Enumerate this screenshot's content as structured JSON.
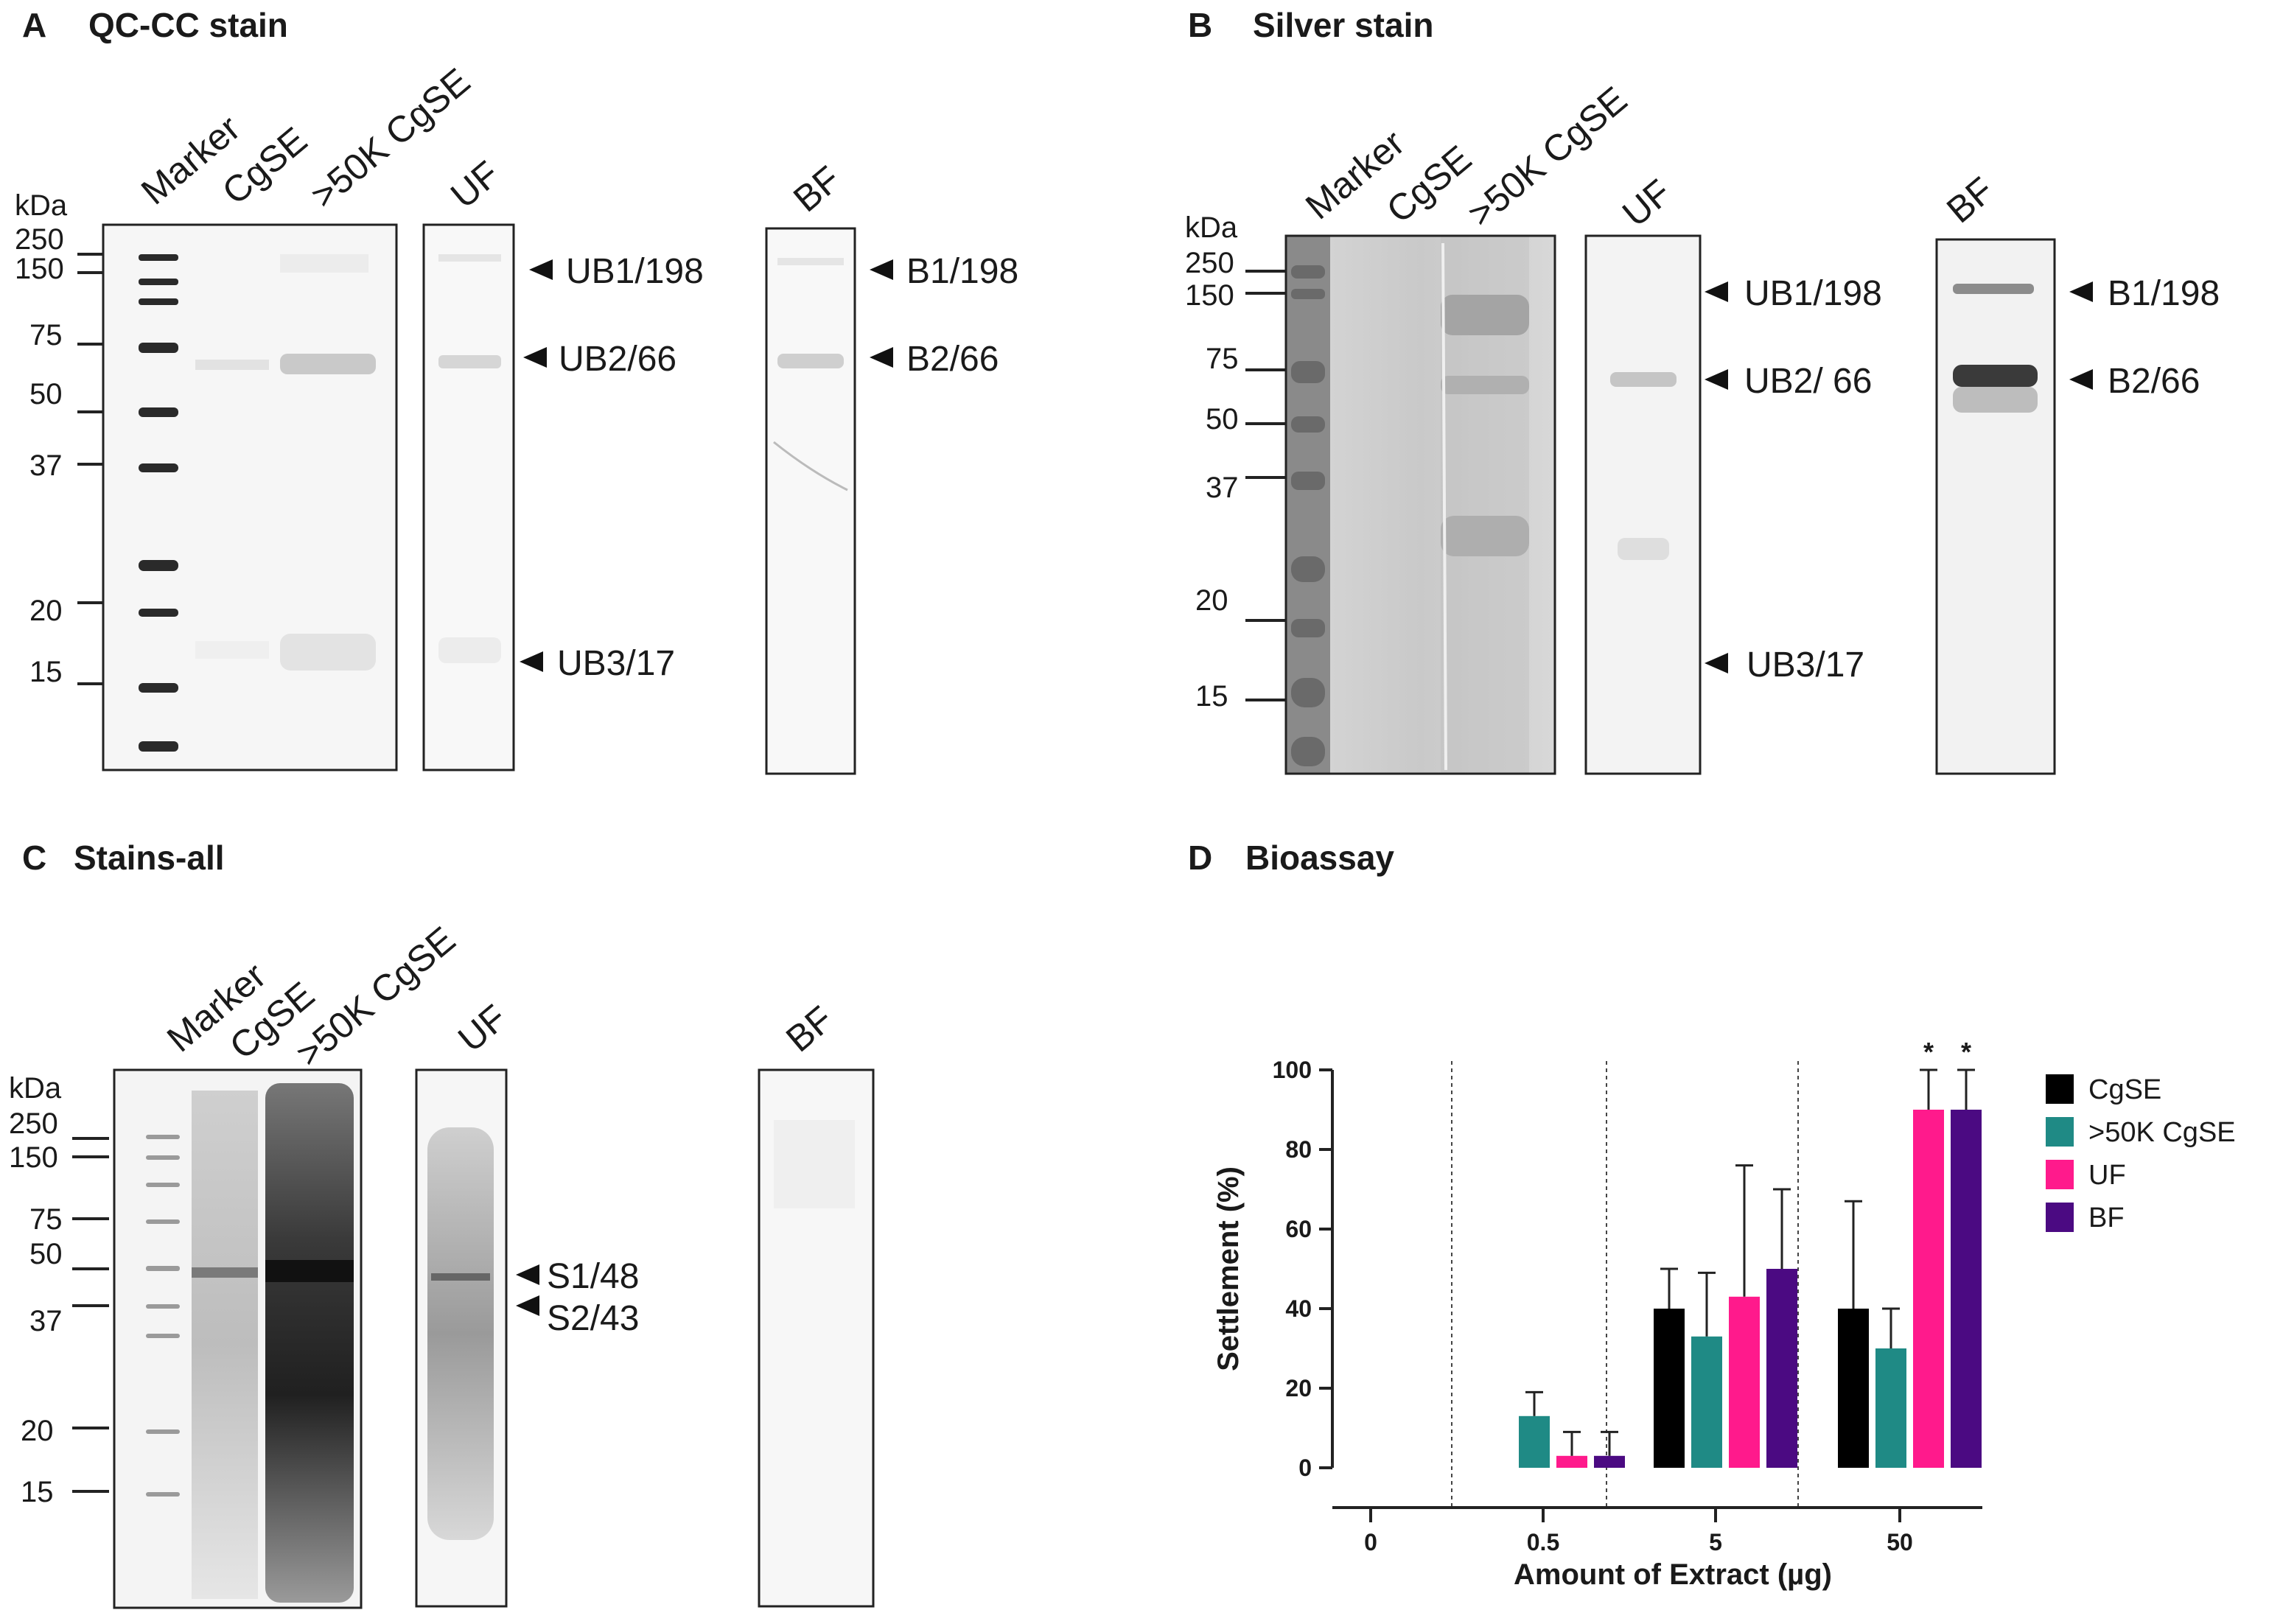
{
  "panels": {
    "A": {
      "letter": "A",
      "title": "QC-CC stain",
      "lanes": [
        "Marker",
        "CgSE",
        ">50K CgSE",
        "UF",
        "BF"
      ],
      "kda_label": "kDa",
      "markers": [
        "250",
        "150",
        "75",
        "50",
        "37",
        "20",
        "15"
      ],
      "annotations": [
        "UB1/198",
        "UB2/66",
        "UB3/17",
        "B1/198",
        "B2/66"
      ]
    },
    "B": {
      "letter": "B",
      "title": "Silver stain",
      "lanes": [
        "Marker",
        "CgSE",
        ">50K CgSE",
        "UF",
        "BF"
      ],
      "kda_label": "kDa",
      "markers": [
        "250",
        "150",
        "75",
        "50",
        "37",
        "20",
        "15"
      ],
      "annotations": [
        "UB1/198",
        "UB2/ 66",
        "UB3/17",
        "B1/198",
        "B2/66"
      ]
    },
    "C": {
      "letter": "C",
      "title": "Stains-all",
      "lanes": [
        "Marker",
        "CgSE",
        ">50K CgSE",
        "UF",
        "BF"
      ],
      "kda_label": "kDa",
      "markers": [
        "250",
        "150",
        "75",
        "50",
        "37",
        "20",
        "15"
      ],
      "annotations": [
        "S1/48",
        "S2/43"
      ]
    },
    "D": {
      "letter": "D",
      "title": "Bioassay"
    }
  },
  "chart_data": {
    "type": "bar",
    "title": "Bioassay",
    "xlabel": "Amount of Extract (µg)",
    "ylabel": "Settlement (%)",
    "ylim": [
      0,
      100
    ],
    "yticks": [
      "0",
      "20",
      "40",
      "60",
      "80",
      "100"
    ],
    "categories": [
      "0",
      "0.5",
      "5",
      "50"
    ],
    "series": [
      {
        "name": "CgSE",
        "color": "#000000",
        "values": [
          0,
          0,
          40,
          40
        ],
        "errors": [
          0,
          0,
          10,
          27
        ]
      },
      {
        "name": ">50K CgSE",
        "color": "#1f8a85",
        "values": [
          0,
          13,
          33,
          30
        ],
        "errors": [
          0,
          6,
          16,
          10
        ]
      },
      {
        "name": "UF",
        "color": "#ff1a8c",
        "values": [
          0,
          3,
          43,
          90
        ],
        "errors": [
          0,
          6,
          33,
          10
        ]
      },
      {
        "name": "BF",
        "color": "#4b0a82",
        "values": [
          0,
          3,
          50,
          90
        ],
        "errors": [
          0,
          6,
          20,
          10
        ]
      }
    ],
    "significance": {
      "marker": "*",
      "points": [
        {
          "category": "50",
          "series": "UF"
        },
        {
          "category": "50",
          "series": "BF"
        }
      ]
    },
    "legend_position": "right"
  }
}
